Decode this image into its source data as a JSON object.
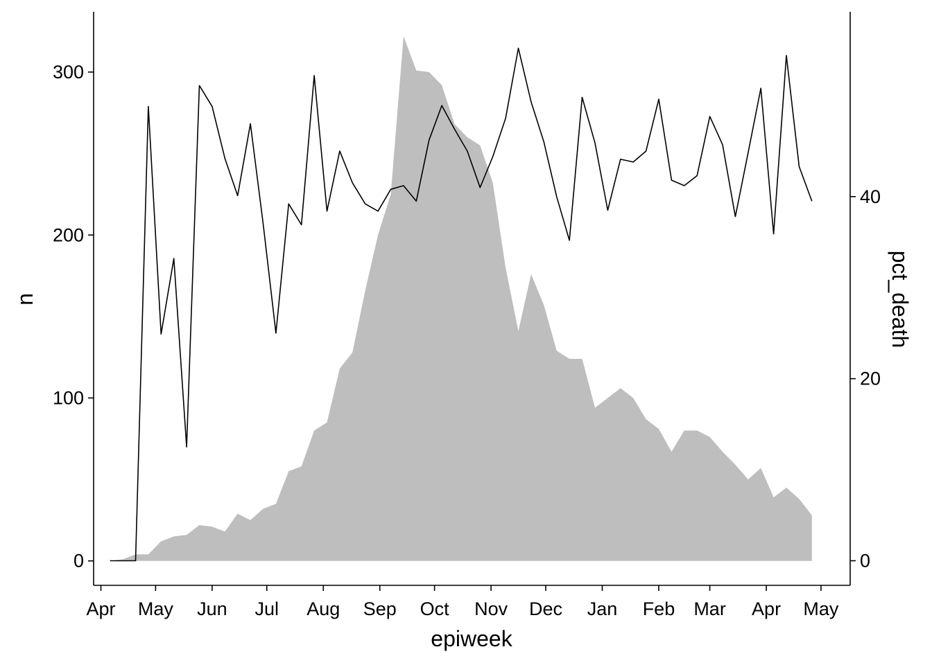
{
  "chart_data": {
    "type": "area",
    "xlabel": "epiweek",
    "ylabel_left": "n",
    "ylabel_right": "pct_death",
    "x_tick_labels": [
      "Apr",
      "May",
      "Jun",
      "Jul",
      "Aug",
      "Sep",
      "Oct",
      "Nov",
      "Dec",
      "Jan",
      "Feb",
      "Mar",
      "Apr",
      "May"
    ],
    "y_left_ticks": [
      0,
      100,
      200,
      300
    ],
    "y_right_ticks": [
      0,
      20,
      40
    ],
    "y_left_range": [
      -15,
      337
    ],
    "y_right_range": [
      -2.7,
      60.3
    ],
    "grid": false,
    "x_weeks": [
      "2014-04-06",
      "2014-04-13",
      "2014-04-20",
      "2014-04-27",
      "2014-05-04",
      "2014-05-11",
      "2014-05-18",
      "2014-05-25",
      "2014-06-01",
      "2014-06-08",
      "2014-06-15",
      "2014-06-22",
      "2014-06-29",
      "2014-07-06",
      "2014-07-13",
      "2014-07-20",
      "2014-07-27",
      "2014-08-03",
      "2014-08-10",
      "2014-08-17",
      "2014-08-24",
      "2014-08-31",
      "2014-09-07",
      "2014-09-14",
      "2014-09-21",
      "2014-09-28",
      "2014-10-05",
      "2014-10-12",
      "2014-10-19",
      "2014-10-26",
      "2014-11-02",
      "2014-11-09",
      "2014-11-16",
      "2014-11-23",
      "2014-11-30",
      "2014-12-07",
      "2014-12-14",
      "2014-12-21",
      "2014-12-28",
      "2015-01-04",
      "2015-01-11",
      "2015-01-18",
      "2015-01-25",
      "2015-02-01",
      "2015-02-08",
      "2015-02-15",
      "2015-02-22",
      "2015-03-01",
      "2015-03-08",
      "2015-03-15",
      "2015-03-22",
      "2015-03-29",
      "2015-04-05",
      "2015-04-12",
      "2015-04-19",
      "2015-04-26"
    ],
    "series": [
      {
        "name": "n",
        "type": "area",
        "color": "#bebebe",
        "axis": "left",
        "values": [
          0,
          1,
          4,
          4,
          12,
          15,
          16,
          22,
          21,
          18,
          29,
          25,
          32,
          35,
          55,
          58,
          80,
          85,
          118,
          128,
          166,
          200,
          225,
          322,
          301,
          300,
          292,
          268,
          260,
          255,
          232,
          180,
          141,
          176,
          157,
          129,
          124,
          124,
          94,
          100,
          106,
          100,
          87,
          81,
          67,
          80,
          80,
          76,
          67,
          59,
          50,
          57,
          39,
          45,
          38,
          28
        ]
      },
      {
        "name": "pct_death",
        "type": "line",
        "color": "#000000",
        "axis": "right",
        "values": [
          0,
          0,
          0,
          49.9,
          24.9,
          33.2,
          12.5,
          52.2,
          49.9,
          44.2,
          40.1,
          48,
          37,
          25,
          39.2,
          36.9,
          53.3,
          38.4,
          45,
          41.5,
          39.2,
          38.4,
          40.8,
          41.2,
          39.5,
          46.2,
          50,
          47.4,
          45,
          41,
          44.4,
          48.6,
          56.3,
          50.4,
          46,
          40,
          35.2,
          50.9,
          45.9,
          38.5,
          44.1,
          43.8,
          45,
          50.7,
          41.8,
          41.2,
          42.3,
          48.8,
          45.7,
          37.8,
          44.8,
          51.9,
          35.9,
          55.5,
          43.3,
          39.5
        ]
      }
    ]
  }
}
